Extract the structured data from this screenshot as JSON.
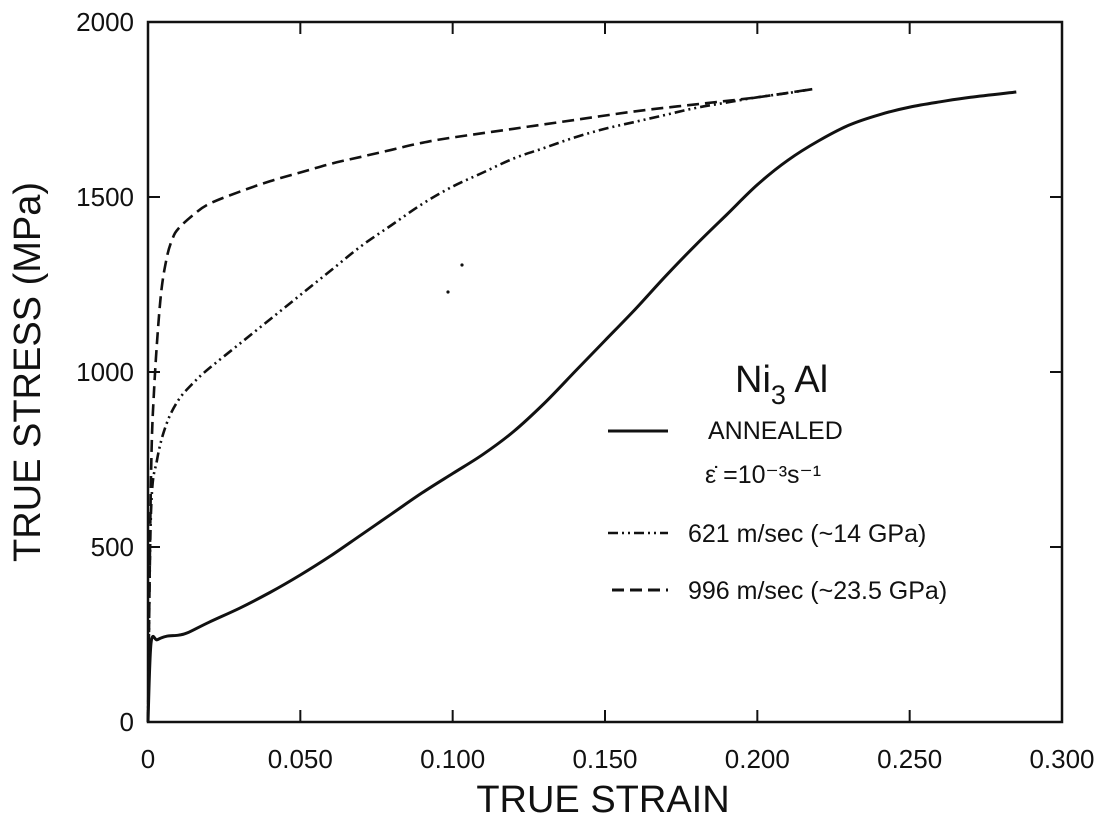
{
  "chart_data": {
    "type": "line",
    "title": "",
    "xlabel": "TRUE STRAIN",
    "ylabel": "TRUE STRESS (MPa)",
    "xlim": [
      0,
      0.3
    ],
    "ylim": [
      0,
      2000
    ],
    "x_ticks": [
      0,
      0.05,
      0.1,
      0.15,
      0.2,
      0.25,
      0.3
    ],
    "x_tick_labels": [
      "0",
      "0.050",
      "0.100",
      "0.150",
      "0.200",
      "0.250",
      "0.300"
    ],
    "y_ticks": [
      0,
      500,
      1000,
      1500,
      2000
    ],
    "y_tick_labels": [
      "0",
      "500",
      "1000",
      "1500",
      "2000"
    ],
    "grid": false,
    "legend_placement": "center-right",
    "annotation": {
      "material_main": "Ni",
      "material_sub": "3",
      "material_tail": " Al"
    },
    "series": [
      {
        "name": "ANNEALED",
        "name_line2": "ε̇ =10⁻³s⁻¹",
        "style": "solid",
        "x": [
          0,
          0.001,
          0.003,
          0.006,
          0.01,
          0.013,
          0.02,
          0.03,
          0.04,
          0.05,
          0.06,
          0.07,
          0.08,
          0.09,
          0.1,
          0.11,
          0.12,
          0.13,
          0.14,
          0.15,
          0.16,
          0.17,
          0.18,
          0.19,
          0.2,
          0.21,
          0.22,
          0.23,
          0.24,
          0.25,
          0.26,
          0.27,
          0.285
        ],
        "y": [
          0,
          225,
          235,
          245,
          248,
          255,
          285,
          325,
          370,
          420,
          475,
          535,
          595,
          655,
          710,
          765,
          830,
          910,
          1000,
          1090,
          1180,
          1275,
          1365,
          1450,
          1535,
          1605,
          1660,
          1705,
          1735,
          1757,
          1772,
          1785,
          1800
        ]
      },
      {
        "name": "621 m/sec (~14 GPa)",
        "style": "dashdot",
        "x": [
          0,
          0.001,
          0.003,
          0.006,
          0.01,
          0.015,
          0.02,
          0.03,
          0.04,
          0.05,
          0.06,
          0.07,
          0.08,
          0.09,
          0.1,
          0.11,
          0.12,
          0.13,
          0.14,
          0.15,
          0.16,
          0.17,
          0.18,
          0.19,
          0.2,
          0.21,
          0.218
        ],
        "y": [
          0,
          600,
          750,
          850,
          920,
          970,
          1010,
          1080,
          1150,
          1220,
          1290,
          1360,
          1420,
          1480,
          1530,
          1570,
          1610,
          1640,
          1670,
          1695,
          1715,
          1735,
          1755,
          1770,
          1785,
          1797,
          1808
        ]
      },
      {
        "name": "996 m/sec (~23.5 GPa)",
        "style": "dashed",
        "x": [
          0,
          0.001,
          0.002,
          0.004,
          0.006,
          0.008,
          0.01,
          0.015,
          0.02,
          0.03,
          0.04,
          0.05,
          0.06,
          0.07,
          0.08,
          0.09,
          0.1,
          0.12,
          0.14,
          0.16,
          0.18,
          0.2,
          0.218
        ],
        "y": [
          0,
          700,
          950,
          1200,
          1320,
          1380,
          1410,
          1450,
          1480,
          1515,
          1545,
          1570,
          1595,
          1615,
          1635,
          1655,
          1670,
          1695,
          1720,
          1745,
          1765,
          1785,
          1808
        ]
      }
    ]
  }
}
